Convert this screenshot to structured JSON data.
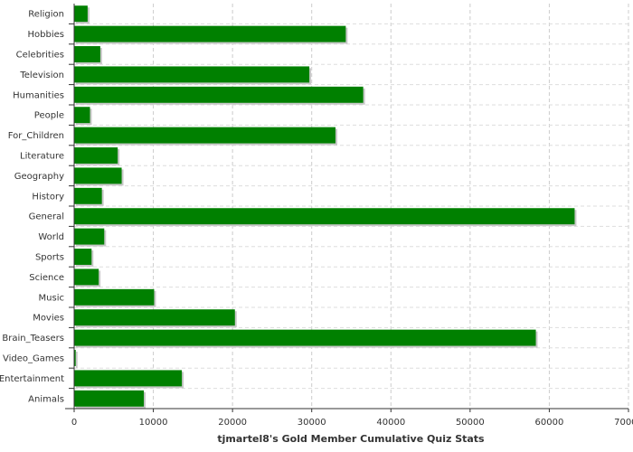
{
  "chart_data": {
    "type": "bar",
    "orientation": "horizontal",
    "title": "",
    "xlabel": "tjmartel8's Gold Member Cumulative Quiz Stats",
    "ylabel": "",
    "categories": [
      "Religion",
      "Hobbies",
      "Celebrities",
      "Television",
      "Humanities",
      "People",
      "For_Children",
      "Literature",
      "Geography",
      "History",
      "General",
      "World",
      "Sports",
      "Science",
      "Music",
      "Movies",
      "Brain_Teasers",
      "Video_Games",
      "Entertainment",
      "Animals"
    ],
    "values": [
      1700,
      34300,
      3300,
      29700,
      36500,
      2000,
      33000,
      5500,
      6000,
      3500,
      63200,
      3800,
      2200,
      3100,
      10100,
      20300,
      58300,
      200,
      13600,
      8800
    ],
    "xlim": [
      0,
      70000
    ],
    "xticks": [
      "0",
      "10000",
      "20000",
      "30000",
      "40000",
      "50000",
      "60000",
      "70000"
    ],
    "grid": true,
    "bar_color": "#008000",
    "legend": "none"
  }
}
